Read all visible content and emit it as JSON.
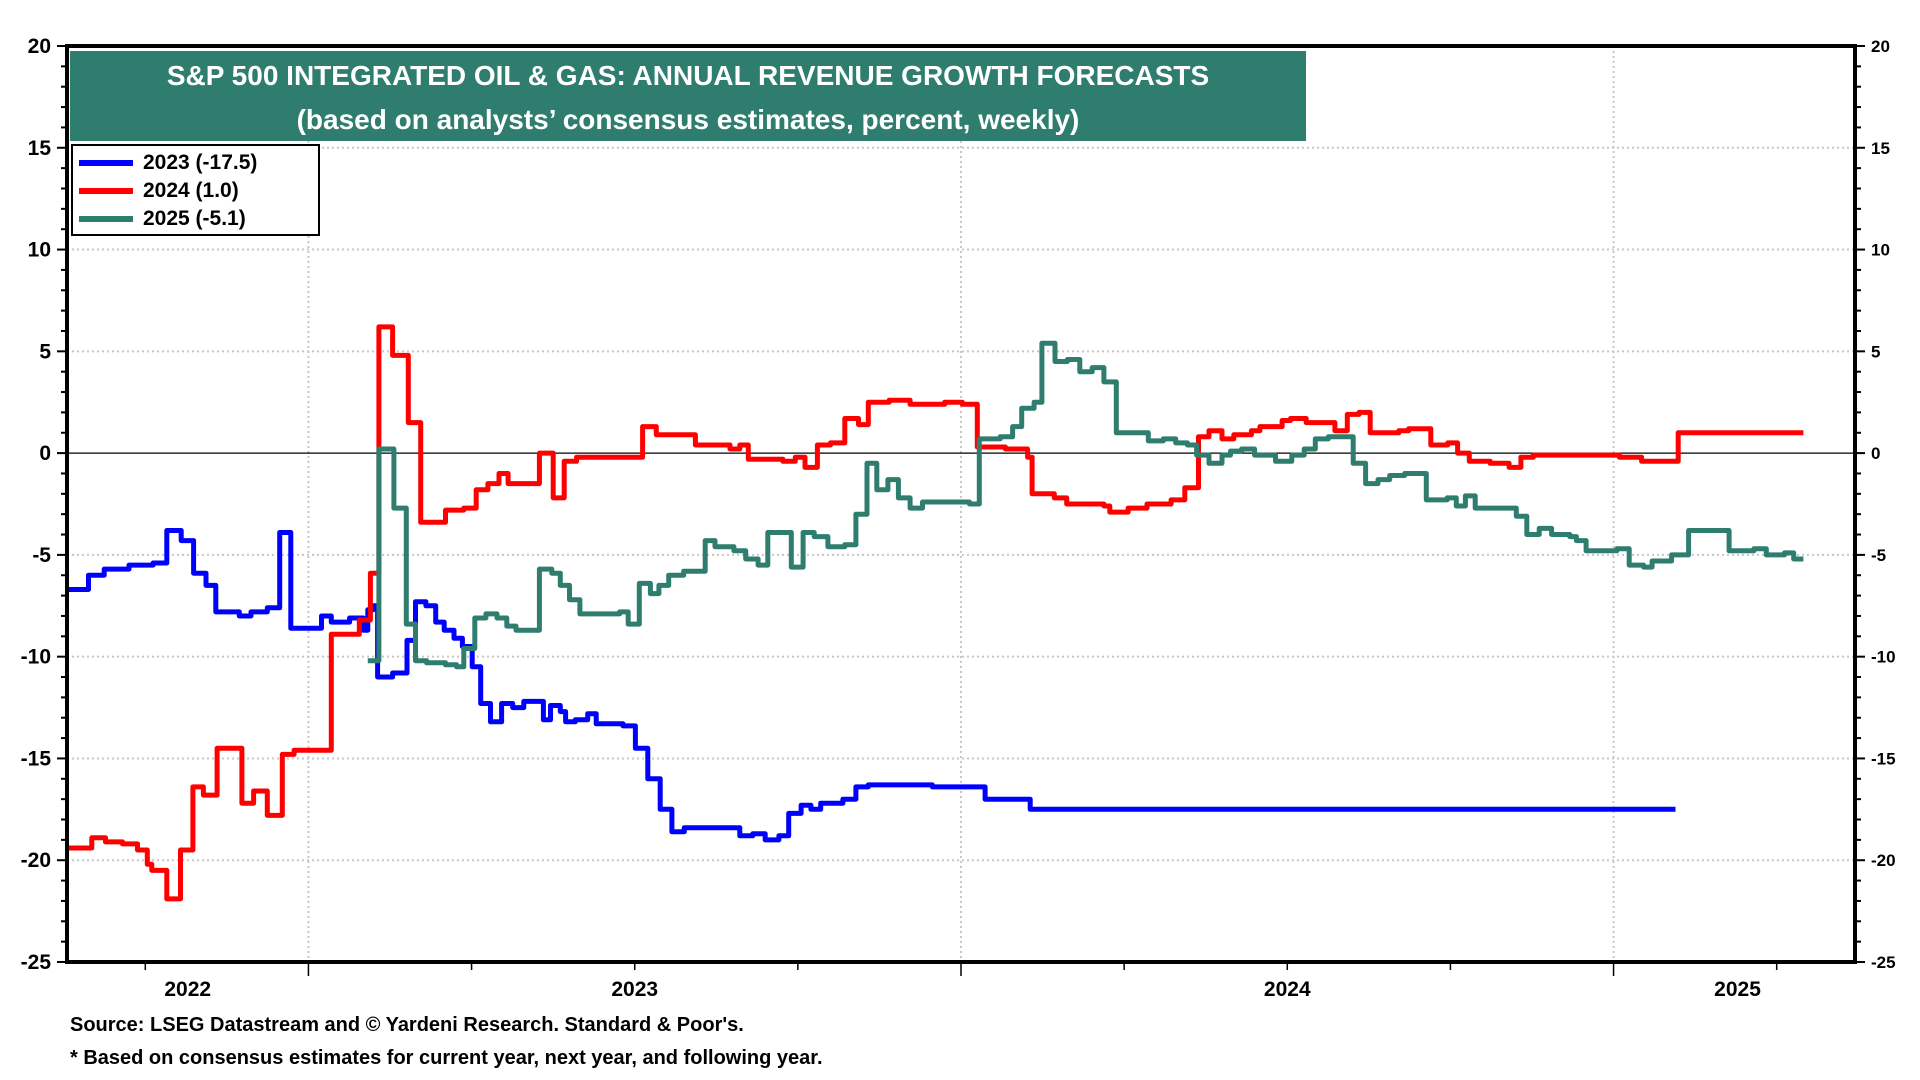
{
  "chart_data": {
    "type": "line",
    "title": "S&P 500 INTEGRATED OIL & GAS: ANNUAL REVENUE GROWTH FORECASTS",
    "subtitle": "(based on analysts’ consensus estimates, percent, weekly)",
    "xlabel": "",
    "ylabel": "",
    "ylim": [
      -25,
      20
    ],
    "xlim": [
      2022.63,
      2025.37
    ],
    "y_ticks": [
      20,
      15,
      10,
      5,
      0,
      -5,
      -10,
      -15,
      -20,
      -25
    ],
    "y_tick_labels": [
      "20",
      "15",
      "10",
      "5",
      "0",
      "-5",
      "-10",
      "-15",
      "-20",
      "-25"
    ],
    "x_tick_labels": [
      {
        "label": "2022",
        "x": 2022.815
      },
      {
        "label": "2023",
        "x": 2023.5
      },
      {
        "label": "2024",
        "x": 2024.5
      },
      {
        "label": "2025",
        "x": 2025.19
      }
    ],
    "year_boundaries": [
      2023,
      2024,
      2025
    ],
    "grid": true,
    "zero_line": true,
    "dual_y_axis": true,
    "legend_position": "top-left",
    "series": [
      {
        "name": "2023 (-17.5)",
        "color": "#0000ff",
        "points": [
          [
            2022.631,
            -6.7
          ],
          [
            2022.663,
            -6.0
          ],
          [
            2022.687,
            -5.7
          ],
          [
            2022.725,
            -5.5
          ],
          [
            2022.762,
            -5.4
          ],
          [
            2022.783,
            -3.8
          ],
          [
            2022.805,
            -4.3
          ],
          [
            2022.824,
            -5.9
          ],
          [
            2022.843,
            -6.5
          ],
          [
            2022.858,
            -7.8
          ],
          [
            2022.894,
            -8.0
          ],
          [
            2022.912,
            -7.8
          ],
          [
            2022.937,
            -7.6
          ],
          [
            2022.956,
            -3.9
          ],
          [
            2022.973,
            -8.6
          ],
          [
            2023.02,
            -8.0
          ],
          [
            2023.035,
            -8.3
          ],
          [
            2023.063,
            -8.1
          ],
          [
            2023.084,
            -8.7
          ],
          [
            2023.091,
            -7.7
          ],
          [
            2023.099,
            -7.5
          ],
          [
            2023.106,
            -11.0
          ],
          [
            2023.129,
            -10.8
          ],
          [
            2023.151,
            -9.2
          ],
          [
            2023.164,
            -7.3
          ],
          [
            2023.18,
            -7.5
          ],
          [
            2023.195,
            -8.3
          ],
          [
            2023.208,
            -8.7
          ],
          [
            2023.223,
            -9.1
          ],
          [
            2023.236,
            -9.5
          ],
          [
            2023.251,
            -10.5
          ],
          [
            2023.264,
            -12.3
          ],
          [
            2023.279,
            -13.2
          ],
          [
            2023.296,
            -12.3
          ],
          [
            2023.313,
            -12.5
          ],
          [
            2023.33,
            -12.2
          ],
          [
            2023.36,
            -13.1
          ],
          [
            2023.371,
            -12.4
          ],
          [
            2023.386,
            -12.7
          ],
          [
            2023.394,
            -13.2
          ],
          [
            2023.409,
            -13.1
          ],
          [
            2023.428,
            -12.8
          ],
          [
            2023.441,
            -13.3
          ],
          [
            2023.482,
            -13.4
          ],
          [
            2023.501,
            -14.5
          ],
          [
            2023.52,
            -16.0
          ],
          [
            2023.539,
            -17.5
          ],
          [
            2023.557,
            -18.6
          ],
          [
            2023.576,
            -18.4
          ],
          [
            2023.614,
            -18.4
          ],
          [
            2023.661,
            -18.8
          ],
          [
            2023.681,
            -18.7
          ],
          [
            2023.7,
            -19.0
          ],
          [
            2023.721,
            -18.8
          ],
          [
            2023.736,
            -17.7
          ],
          [
            2023.755,
            -17.3
          ],
          [
            2023.77,
            -17.5
          ],
          [
            2023.785,
            -17.2
          ],
          [
            2023.819,
            -17.0
          ],
          [
            2023.839,
            -16.4
          ],
          [
            2023.858,
            -16.3
          ],
          [
            2023.956,
            -16.4
          ],
          [
            2024.022,
            -16.4
          ],
          [
            2024.037,
            -17.0
          ],
          [
            2024.106,
            -17.5
          ],
          [
            2025.095,
            -17.5
          ]
        ]
      },
      {
        "name": "2024 (1.0)",
        "color": "#ff0000",
        "points": [
          [
            2022.631,
            -19.4
          ],
          [
            2022.668,
            -18.9
          ],
          [
            2022.689,
            -19.1
          ],
          [
            2022.715,
            -19.2
          ],
          [
            2022.738,
            -19.5
          ],
          [
            2022.753,
            -20.2
          ],
          [
            2022.76,
            -20.5
          ],
          [
            2022.783,
            -21.9
          ],
          [
            2022.804,
            -19.5
          ],
          [
            2022.823,
            -16.4
          ],
          [
            2022.839,
            -16.8
          ],
          [
            2022.86,
            -14.5
          ],
          [
            2022.898,
            -17.2
          ],
          [
            2022.916,
            -16.6
          ],
          [
            2022.937,
            -17.8
          ],
          [
            2022.96,
            -14.8
          ],
          [
            2022.978,
            -14.6
          ],
          [
            2023.012,
            -14.6
          ],
          [
            2023.035,
            -8.9
          ],
          [
            2023.078,
            -8.2
          ],
          [
            2023.095,
            -5.9
          ],
          [
            2023.108,
            6.2
          ],
          [
            2023.129,
            4.8
          ],
          [
            2023.153,
            1.5
          ],
          [
            2023.172,
            -3.4
          ],
          [
            2023.21,
            -2.8
          ],
          [
            2023.238,
            -2.7
          ],
          [
            2023.257,
            -1.8
          ],
          [
            2023.275,
            -1.5
          ],
          [
            2023.292,
            -1.0
          ],
          [
            2023.306,
            -1.5
          ],
          [
            2023.354,
            0.0
          ],
          [
            2023.375,
            -2.2
          ],
          [
            2023.392,
            -0.4
          ],
          [
            2023.411,
            -0.2
          ],
          [
            2023.501,
            -0.2
          ],
          [
            2023.512,
            1.3
          ],
          [
            2023.533,
            0.9
          ],
          [
            2023.593,
            0.4
          ],
          [
            2023.646,
            0.2
          ],
          [
            2023.661,
            0.4
          ],
          [
            2023.674,
            -0.3
          ],
          [
            2023.727,
            -0.4
          ],
          [
            2023.746,
            -0.2
          ],
          [
            2023.761,
            -0.7
          ],
          [
            2023.78,
            0.4
          ],
          [
            2023.8,
            0.5
          ],
          [
            2023.822,
            1.7
          ],
          [
            2023.843,
            1.4
          ],
          [
            2023.858,
            2.5
          ],
          [
            2023.89,
            2.6
          ],
          [
            2023.922,
            2.4
          ],
          [
            2023.975,
            2.5
          ],
          [
            2024.002,
            2.4
          ],
          [
            2024.025,
            0.3
          ],
          [
            2024.068,
            0.2
          ],
          [
            2024.102,
            -0.2
          ],
          [
            2024.109,
            -2.0
          ],
          [
            2024.143,
            -2.2
          ],
          [
            2024.162,
            -2.5
          ],
          [
            2024.219,
            -2.6
          ],
          [
            2024.228,
            -2.9
          ],
          [
            2024.256,
            -2.7
          ],
          [
            2024.285,
            -2.5
          ],
          [
            2024.322,
            -2.3
          ],
          [
            2024.343,
            -1.7
          ],
          [
            2024.364,
            0.8
          ],
          [
            2024.38,
            1.1
          ],
          [
            2024.4,
            0.7
          ],
          [
            2024.418,
            0.9
          ],
          [
            2024.445,
            1.1
          ],
          [
            2024.458,
            1.3
          ],
          [
            2024.492,
            1.6
          ],
          [
            2024.505,
            1.7
          ],
          [
            2024.529,
            1.5
          ],
          [
            2024.573,
            1.1
          ],
          [
            2024.592,
            1.9
          ],
          [
            2024.61,
            2.0
          ],
          [
            2024.627,
            1.0
          ],
          [
            2024.671,
            1.1
          ],
          [
            2024.686,
            1.2
          ],
          [
            2024.72,
            0.4
          ],
          [
            2024.746,
            0.5
          ],
          [
            2024.761,
            0.0
          ],
          [
            2024.779,
            -0.4
          ],
          [
            2024.811,
            -0.5
          ],
          [
            2024.84,
            -0.7
          ],
          [
            2024.858,
            -0.2
          ],
          [
            2024.877,
            -0.1
          ],
          [
            2025.009,
            -0.2
          ],
          [
            2025.043,
            -0.4
          ],
          [
            2025.099,
            1.0
          ],
          [
            2025.291,
            1.0
          ]
        ]
      },
      {
        "name": "2025 (-5.1)",
        "color": "#2e7d6f",
        "points": [
          [
            2023.091,
            -10.2
          ],
          [
            2023.108,
            0.2
          ],
          [
            2023.131,
            -2.7
          ],
          [
            2023.15,
            -8.4
          ],
          [
            2023.164,
            -10.2
          ],
          [
            2023.181,
            -10.3
          ],
          [
            2023.21,
            -10.4
          ],
          [
            2023.227,
            -10.5
          ],
          [
            2023.238,
            -9.6
          ],
          [
            2023.255,
            -8.1
          ],
          [
            2023.272,
            -7.9
          ],
          [
            2023.289,
            -8.1
          ],
          [
            2023.304,
            -8.5
          ],
          [
            2023.318,
            -8.7
          ],
          [
            2023.354,
            -5.7
          ],
          [
            2023.373,
            -5.9
          ],
          [
            2023.386,
            -6.5
          ],
          [
            2023.4,
            -7.2
          ],
          [
            2023.416,
            -7.9
          ],
          [
            2023.477,
            -7.8
          ],
          [
            2023.49,
            -8.4
          ],
          [
            2023.507,
            -6.4
          ],
          [
            2023.524,
            -6.9
          ],
          [
            2023.537,
            -6.5
          ],
          [
            2023.552,
            -6.0
          ],
          [
            2023.575,
            -5.8
          ],
          [
            2023.608,
            -4.3
          ],
          [
            2023.623,
            -4.6
          ],
          [
            2023.652,
            -4.8
          ],
          [
            2023.67,
            -5.2
          ],
          [
            2023.689,
            -5.5
          ],
          [
            2023.704,
            -3.9
          ],
          [
            2023.74,
            -5.6
          ],
          [
            2023.758,
            -3.9
          ],
          [
            2023.775,
            -4.1
          ],
          [
            2023.796,
            -4.6
          ],
          [
            2023.822,
            -4.5
          ],
          [
            2023.839,
            -3.0
          ],
          [
            2023.856,
            -0.5
          ],
          [
            2023.871,
            -1.8
          ],
          [
            2023.888,
            -1.3
          ],
          [
            2023.904,
            -2.2
          ],
          [
            2023.922,
            -2.7
          ],
          [
            2023.941,
            -2.4
          ],
          [
            2024.013,
            -2.5
          ],
          [
            2024.028,
            0.7
          ],
          [
            2024.06,
            0.8
          ],
          [
            2024.079,
            1.3
          ],
          [
            2024.093,
            2.2
          ],
          [
            2024.112,
            2.5
          ],
          [
            2024.124,
            5.4
          ],
          [
            2024.144,
            4.5
          ],
          [
            2024.163,
            4.6
          ],
          [
            2024.182,
            4.0
          ],
          [
            2024.201,
            4.2
          ],
          [
            2024.219,
            3.5
          ],
          [
            2024.238,
            1.0
          ],
          [
            2024.287,
            0.6
          ],
          [
            2024.31,
            0.7
          ],
          [
            2024.329,
            0.5
          ],
          [
            2024.347,
            0.4
          ],
          [
            2024.361,
            -0.1
          ],
          [
            2024.38,
            -0.5
          ],
          [
            2024.4,
            -0.1
          ],
          [
            2024.413,
            0.1
          ],
          [
            2024.43,
            0.2
          ],
          [
            2024.45,
            -0.1
          ],
          [
            2024.482,
            -0.4
          ],
          [
            2024.507,
            -0.1
          ],
          [
            2024.526,
            0.2
          ],
          [
            2024.543,
            0.7
          ],
          [
            2024.563,
            0.8
          ],
          [
            2024.601,
            -0.5
          ],
          [
            2024.62,
            -1.5
          ],
          [
            2024.639,
            -1.3
          ],
          [
            2024.657,
            -1.1
          ],
          [
            2024.68,
            -1.0
          ],
          [
            2024.713,
            -2.3
          ],
          [
            2024.745,
            -2.2
          ],
          [
            2024.759,
            -2.6
          ],
          [
            2024.773,
            -2.1
          ],
          [
            2024.788,
            -2.7
          ],
          [
            2024.851,
            -3.1
          ],
          [
            2024.867,
            -4.0
          ],
          [
            2024.886,
            -3.7
          ],
          [
            2024.905,
            -4.0
          ],
          [
            2024.933,
            -4.1
          ],
          [
            2024.943,
            -4.3
          ],
          [
            2024.958,
            -4.8
          ],
          [
            2025.005,
            -4.7
          ],
          [
            2025.024,
            -5.5
          ],
          [
            2025.046,
            -5.6
          ],
          [
            2025.059,
            -5.3
          ],
          [
            2025.089,
            -5.0
          ],
          [
            2025.115,
            -3.8
          ],
          [
            2025.177,
            -4.8
          ],
          [
            2025.215,
            -4.7
          ],
          [
            2025.234,
            -5.0
          ],
          [
            2025.262,
            -4.9
          ],
          [
            2025.276,
            -5.2
          ],
          [
            2025.291,
            -5.2
          ]
        ]
      }
    ]
  },
  "header": {
    "title": "S&P 500 INTEGRATED OIL & GAS: ANNUAL REVENUE GROWTH FORECASTS",
    "subtitle": "(based on analysts’ consensus estimates, percent, weekly)",
    "background_color": "#2e7d6f"
  },
  "legend": {
    "items": [
      {
        "label": "2023 (-17.5)",
        "color": "#0000ff"
      },
      {
        "label": "2024 (1.0)",
        "color": "#ff0000"
      },
      {
        "label": "2025 (-5.1)",
        "color": "#2e7d6f"
      }
    ]
  },
  "footer": {
    "source": "Source: LSEG Datastream and © Yardeni Research. Standard & Poor's.",
    "note": "* Based on consensus estimates for current year, next year, and following year."
  }
}
